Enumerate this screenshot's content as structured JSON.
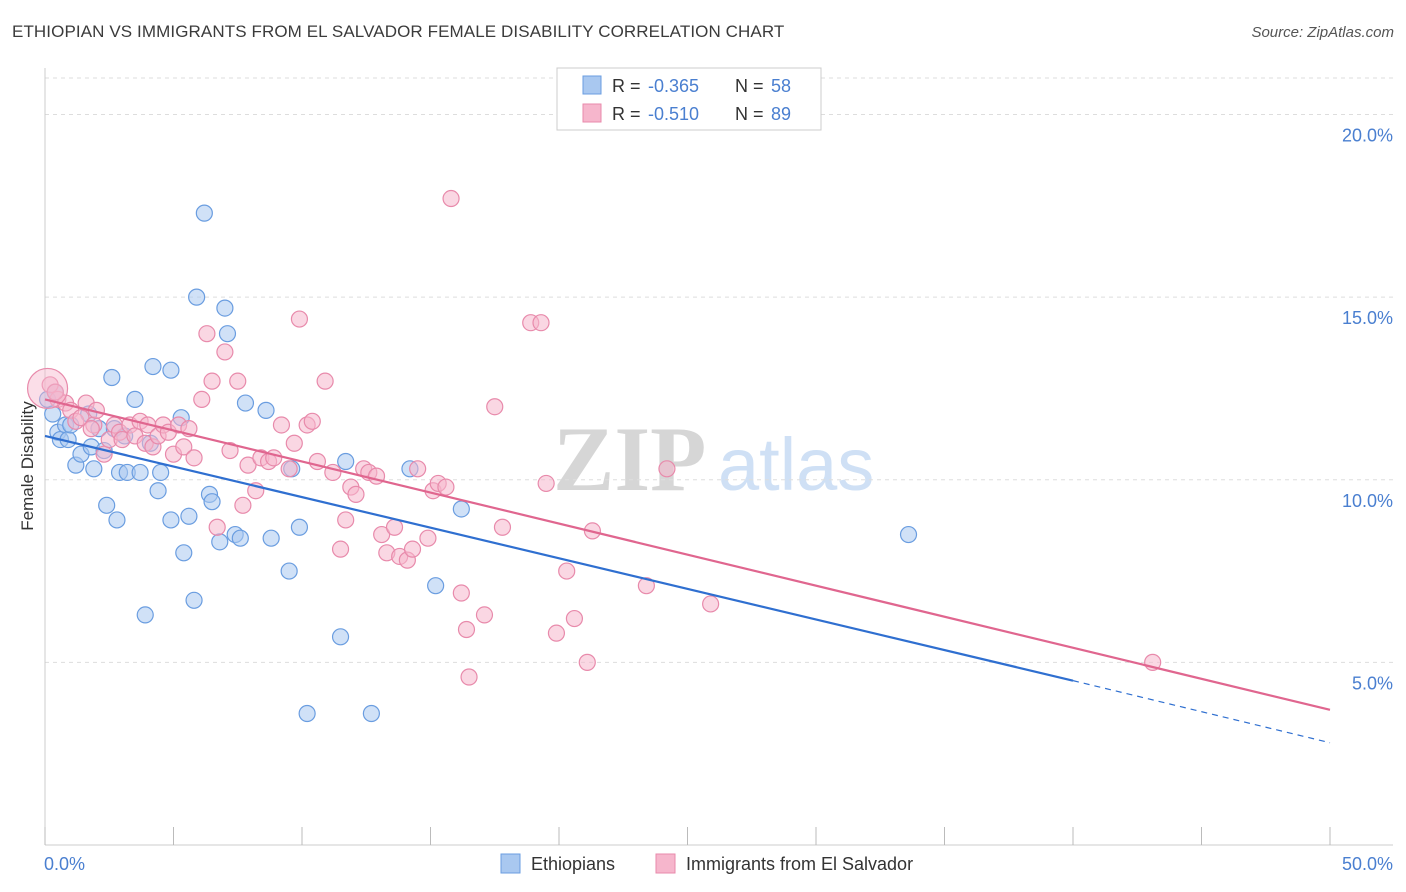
{
  "header": {
    "title": "ETHIOPIAN VS IMMIGRANTS FROM EL SALVADOR FEMALE DISABILITY CORRELATION CHART",
    "source": "Source: ZipAtlas.com"
  },
  "watermark": {
    "zip": "ZIP",
    "atlas": "atlas"
  },
  "colors": {
    "blue_fill": "#a9c8f0",
    "blue_stroke": "#6a9de0",
    "blue_line": "#2f6fd0",
    "pink_fill": "#f6b6cc",
    "pink_stroke": "#e88aab",
    "pink_line": "#e0668f",
    "tick_text": "#4a7fd0",
    "grid": "#dddddd"
  },
  "legend_stats": [
    {
      "r_label": "R =",
      "r_value": "-0.365",
      "n_label": "N =",
      "n_value": "58"
    },
    {
      "r_label": "R =",
      "r_value": "-0.510",
      "n_label": "N =",
      "n_value": "89"
    }
  ],
  "chart_data": {
    "type": "scatter",
    "ylabel": "Female Disability",
    "xlabel": "",
    "xlim": [
      0,
      50
    ],
    "ylim": [
      0,
      21
    ],
    "y_ticks": [
      5,
      10,
      15,
      20
    ],
    "y_tick_labels": [
      "5.0%",
      "10.0%",
      "15.0%",
      "20.0%"
    ],
    "x_tick_labels": [
      "0.0%",
      "50.0%"
    ],
    "grid": true,
    "legend_position": "bottom",
    "series": [
      {
        "name": "Ethiopians",
        "color": "#a9c8f0",
        "trend": {
          "x0": 0,
          "y0": 11.2,
          "x1": 40,
          "y1": 4.5,
          "dash_to": 50,
          "dash_y": 2.8
        },
        "points": [
          [
            0.1,
            12.2
          ],
          [
            0.3,
            11.8
          ],
          [
            0.4,
            12.4
          ],
          [
            0.5,
            11.3
          ],
          [
            0.6,
            11.1
          ],
          [
            0.8,
            11.5
          ],
          [
            0.9,
            11.1
          ],
          [
            1.0,
            11.5
          ],
          [
            1.2,
            10.4
          ],
          [
            1.4,
            10.7
          ],
          [
            1.7,
            11.8
          ],
          [
            1.8,
            10.9
          ],
          [
            1.9,
            10.3
          ],
          [
            2.1,
            11.4
          ],
          [
            2.3,
            10.8
          ],
          [
            2.4,
            9.3
          ],
          [
            2.6,
            12.8
          ],
          [
            2.7,
            11.4
          ],
          [
            2.8,
            8.9
          ],
          [
            2.9,
            10.2
          ],
          [
            3.1,
            11.2
          ],
          [
            3.2,
            10.2
          ],
          [
            3.5,
            12.2
          ],
          [
            3.7,
            10.2
          ],
          [
            3.9,
            6.3
          ],
          [
            4.1,
            11.0
          ],
          [
            4.2,
            13.1
          ],
          [
            4.4,
            9.7
          ],
          [
            4.5,
            10.2
          ],
          [
            4.9,
            13.0
          ],
          [
            4.9,
            8.9
          ],
          [
            5.3,
            11.7
          ],
          [
            5.4,
            8.0
          ],
          [
            5.6,
            9.0
          ],
          [
            5.8,
            6.7
          ],
          [
            5.9,
            15.0
          ],
          [
            6.2,
            17.3
          ],
          [
            6.4,
            9.6
          ],
          [
            6.5,
            9.4
          ],
          [
            6.8,
            8.3
          ],
          [
            7.0,
            14.7
          ],
          [
            7.1,
            14.0
          ],
          [
            7.4,
            8.5
          ],
          [
            7.6,
            8.4
          ],
          [
            7.8,
            12.1
          ],
          [
            8.6,
            11.9
          ],
          [
            8.8,
            8.4
          ],
          [
            9.5,
            7.5
          ],
          [
            9.6,
            10.3
          ],
          [
            9.9,
            8.7
          ],
          [
            10.2,
            3.6
          ],
          [
            11.5,
            5.7
          ],
          [
            11.7,
            10.5
          ],
          [
            12.7,
            3.6
          ],
          [
            14.2,
            10.3
          ],
          [
            15.2,
            7.1
          ],
          [
            16.2,
            9.2
          ],
          [
            33.6,
            8.5
          ]
        ]
      },
      {
        "name": "Immigrants from El Salvador",
        "color": "#f6b6cc",
        "trend": {
          "x0": 0,
          "y0": 12.2,
          "x1": 50,
          "y1": 3.7
        },
        "points": [
          [
            0.2,
            12.6
          ],
          [
            0.5,
            12.2
          ],
          [
            0.8,
            12.1
          ],
          [
            1.0,
            11.9
          ],
          [
            1.2,
            11.6
          ],
          [
            1.4,
            11.7
          ],
          [
            1.6,
            12.1
          ],
          [
            1.9,
            11.5
          ],
          [
            2.0,
            11.9
          ],
          [
            2.3,
            10.7
          ],
          [
            2.5,
            11.1
          ],
          [
            2.7,
            11.5
          ],
          [
            2.9,
            11.3
          ],
          [
            3.0,
            11.1
          ],
          [
            3.3,
            11.5
          ],
          [
            3.5,
            11.2
          ],
          [
            3.7,
            11.6
          ],
          [
            3.9,
            11.0
          ],
          [
            4.0,
            11.5
          ],
          [
            4.2,
            10.9
          ],
          [
            4.4,
            11.2
          ],
          [
            4.6,
            11.5
          ],
          [
            4.8,
            11.3
          ],
          [
            5.0,
            10.7
          ],
          [
            5.2,
            11.5
          ],
          [
            5.4,
            10.9
          ],
          [
            5.6,
            11.4
          ],
          [
            5.8,
            10.6
          ],
          [
            6.1,
            12.2
          ],
          [
            6.3,
            14.0
          ],
          [
            6.5,
            12.7
          ],
          [
            6.7,
            8.7
          ],
          [
            7.0,
            13.5
          ],
          [
            7.2,
            10.8
          ],
          [
            7.5,
            12.7
          ],
          [
            7.7,
            9.3
          ],
          [
            7.9,
            10.4
          ],
          [
            8.2,
            9.7
          ],
          [
            8.4,
            10.6
          ],
          [
            8.7,
            10.5
          ],
          [
            8.9,
            10.6
          ],
          [
            9.2,
            11.5
          ],
          [
            9.5,
            10.3
          ],
          [
            9.7,
            11.0
          ],
          [
            9.9,
            14.4
          ],
          [
            10.2,
            11.5
          ],
          [
            10.4,
            11.6
          ],
          [
            10.6,
            10.5
          ],
          [
            10.9,
            12.7
          ],
          [
            11.2,
            10.2
          ],
          [
            11.5,
            8.1
          ],
          [
            11.7,
            8.9
          ],
          [
            11.9,
            9.8
          ],
          [
            12.1,
            9.6
          ],
          [
            12.4,
            10.3
          ],
          [
            12.6,
            10.2
          ],
          [
            12.9,
            10.1
          ],
          [
            13.1,
            8.5
          ],
          [
            13.3,
            8.0
          ],
          [
            13.6,
            8.7
          ],
          [
            13.8,
            7.9
          ],
          [
            14.1,
            7.8
          ],
          [
            14.3,
            8.1
          ],
          [
            14.5,
            10.3
          ],
          [
            14.9,
            8.4
          ],
          [
            15.1,
            9.7
          ],
          [
            15.3,
            9.9
          ],
          [
            15.6,
            9.8
          ],
          [
            15.8,
            17.7
          ],
          [
            16.2,
            6.9
          ],
          [
            16.4,
            5.9
          ],
          [
            16.5,
            4.6
          ],
          [
            17.1,
            6.3
          ],
          [
            17.5,
            12.0
          ],
          [
            17.8,
            8.7
          ],
          [
            18.9,
            14.3
          ],
          [
            19.3,
            14.3
          ],
          [
            19.5,
            9.9
          ],
          [
            19.9,
            5.8
          ],
          [
            20.3,
            7.5
          ],
          [
            20.6,
            6.2
          ],
          [
            21.1,
            5.0
          ],
          [
            21.3,
            8.6
          ],
          [
            23.4,
            7.1
          ],
          [
            24.2,
            10.3
          ],
          [
            25.9,
            6.6
          ],
          [
            43.1,
            5.0
          ],
          [
            0.4,
            12.4
          ],
          [
            1.8,
            11.4
          ]
        ]
      }
    ]
  }
}
